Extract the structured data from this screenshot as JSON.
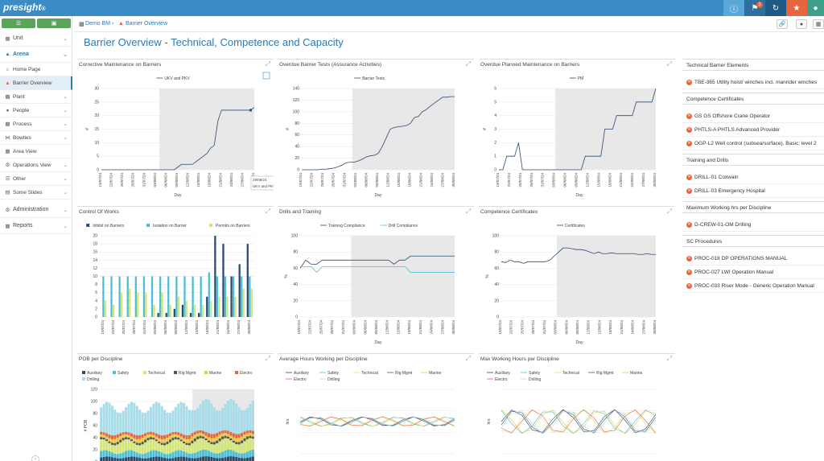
{
  "app": {
    "brand": "presight",
    "brand_suffix": "®",
    "colors": {
      "topbar": "#3a8cc4",
      "green": "#5aa55a",
      "orange": "#e8643c",
      "accent": "#2a7ab0"
    }
  },
  "topbar": {
    "badge_count": "3",
    "icons": [
      "info-icon",
      "bookmark-icon",
      "refresh-icon",
      "star-icon",
      "user-icon"
    ]
  },
  "sidebar": {
    "items": [
      {
        "label": "Unit",
        "icon": "unit-icon"
      },
      {
        "label": "Arena",
        "icon": "arena-icon"
      },
      {
        "label": "Home Page",
        "icon": "home-icon"
      },
      {
        "label": "Barrier Overview",
        "icon": "barrier-icon"
      },
      {
        "label": "Plant",
        "icon": "plant-icon"
      },
      {
        "label": "People",
        "icon": "people-icon"
      },
      {
        "label": "Process",
        "icon": "process-icon"
      },
      {
        "label": "Bowties",
        "icon": "bowtie-icon"
      },
      {
        "label": "Area View",
        "icon": "area-icon"
      },
      {
        "label": "Operations View",
        "icon": "operations-icon"
      },
      {
        "label": "Other",
        "icon": "other-icon"
      },
      {
        "label": "Some Slides",
        "icon": "slides-icon"
      },
      {
        "label": "Administration",
        "icon": "admin-icon"
      },
      {
        "label": "Reports",
        "icon": "reports-icon"
      }
    ]
  },
  "breadcrumb": {
    "root": "Demo BM",
    "separator": "›",
    "current": "Barrier Overview"
  },
  "page": {
    "title": "Barrier Overview - Technical, Competence and Capacity"
  },
  "dates": [
    "19/07/24",
    "22/07/24",
    "25/07/24",
    "28/07/24",
    "31/07/24",
    "03/08/24",
    "06/08/24",
    "09/08/24",
    "12/08/24",
    "15/08/24",
    "18/08/24",
    "21/08/24",
    "24/08/24",
    "27/08/24",
    "30/08/24"
  ],
  "shortdates": [
    "19/07/24",
    "22/07/24",
    "25/07/24",
    "28/07/24",
    "31/07/24",
    "03/08/24",
    "06/08/24",
    "09/08/24",
    "12/08/24",
    "15/08/24",
    "18/08/24",
    "21/08/24",
    "24/08/24",
    "27/08/24"
  ],
  "panels": {
    "cm": {
      "title": "Corrective Maintenance on Barriers",
      "legend": "UKV and PKV",
      "xlabel": "Day",
      "ylabel": "#",
      "yticks": [
        0,
        5,
        10,
        15,
        20,
        25,
        30
      ],
      "values": [
        0,
        0,
        0,
        0,
        0,
        0,
        0,
        0,
        0,
        0,
        0,
        0,
        0,
        0,
        0,
        0,
        0,
        0,
        0,
        0,
        0,
        1,
        2,
        2,
        2,
        2,
        3,
        4,
        5,
        6,
        8,
        9,
        18,
        22,
        22,
        22,
        22,
        22,
        22,
        22,
        22,
        22,
        23
      ],
      "tooltip_date": "29/08/24",
      "tooltip_text": "UKV and PKV: 22"
    },
    "obt": {
      "title": "Overdue Barrier Tests (Assurance Activities)",
      "legend": "Barrier Tests",
      "xlabel": "Day",
      "ylabel": "#",
      "yticks": [
        0,
        20,
        40,
        60,
        80,
        100,
        120,
        140
      ],
      "values": [
        0,
        0,
        0,
        0,
        0,
        1,
        1,
        2,
        3,
        5,
        8,
        12,
        13,
        13,
        15,
        18,
        22,
        24,
        25,
        28,
        40,
        55,
        70,
        73,
        74,
        75,
        76,
        80,
        90,
        92,
        100,
        104,
        110,
        115,
        120,
        125,
        125,
        126,
        126
      ]
    },
    "opm": {
      "title": "Overdue Planned Maintenance on Barriers",
      "legend": "PM",
      "xlabel": "Day",
      "ylabel": "#",
      "yticks": [
        0,
        1,
        2,
        3,
        4,
        5,
        6
      ],
      "values": [
        0,
        0,
        1,
        1,
        1,
        2,
        0,
        0,
        0,
        0,
        0,
        0,
        0,
        0,
        0,
        0,
        0,
        0,
        0,
        0,
        0,
        0,
        1,
        1,
        1,
        1,
        1,
        3,
        3,
        3,
        4,
        4,
        4,
        4,
        4,
        5,
        5,
        5,
        5,
        5,
        6
      ]
    },
    "cow": {
      "title": "Control Of Works",
      "legends": [
        "Inhibit on Barriers",
        "Isolation on Barrier",
        "Permits on Barriers"
      ],
      "colors": [
        "#2d4a6e",
        "#4dbfd4",
        "#d4e67a"
      ],
      "ylabel": "",
      "yticks": [
        0,
        2,
        4,
        6,
        8,
        10,
        12,
        14,
        16,
        18,
        20
      ],
      "series": [
        [
          0,
          0,
          0,
          0,
          0,
          0,
          0,
          1,
          1,
          2,
          3,
          1,
          1,
          5,
          20,
          18,
          10,
          13,
          18
        ],
        [
          10,
          10,
          10,
          10,
          10,
          10,
          10,
          10,
          10,
          10,
          10,
          10,
          10,
          11,
          10,
          10,
          10,
          10,
          10
        ],
        [
          4,
          3,
          6,
          7,
          6,
          6,
          3,
          6,
          3,
          5,
          4,
          3,
          3,
          4,
          5,
          5,
          5,
          7,
          7
        ]
      ]
    },
    "dt": {
      "title": "Drills and Training",
      "legends": [
        "Training Compliance",
        "Drill Compliance"
      ],
      "colors": [
        "#2d4a6e",
        "#4dbfd4"
      ],
      "xlabel": "Day",
      "ylabel": "%",
      "yticks": [
        0,
        20,
        40,
        60,
        80,
        100
      ],
      "series": [
        [
          60,
          70,
          65,
          65,
          70,
          70,
          70,
          70,
          70,
          70,
          70,
          70,
          70,
          70,
          70,
          70,
          70,
          65,
          70,
          70,
          75,
          75,
          75,
          75,
          75,
          75,
          75,
          75,
          75
        ],
        [
          62,
          62,
          62,
          55,
          62,
          62,
          62,
          62,
          62,
          62,
          62,
          62,
          62,
          62,
          62,
          62,
          62,
          62,
          62,
          62,
          55,
          55,
          55,
          55,
          55,
          55,
          55,
          55,
          55
        ]
      ]
    },
    "cc": {
      "title": "Competence Certificates",
      "legend": "Certificates",
      "xlabel": "Day",
      "ylabel": "%",
      "yticks": [
        0,
        20,
        40,
        60,
        80,
        100
      ],
      "values": [
        68,
        67,
        70,
        68,
        68,
        66,
        68,
        68,
        68,
        68,
        68,
        70,
        75,
        80,
        85,
        85,
        84,
        83,
        83,
        82,
        80,
        78,
        80,
        78,
        78,
        79,
        78,
        78,
        78,
        78,
        78,
        77,
        77,
        78,
        77,
        77
      ]
    },
    "pob": {
      "title": "POB per Discipline",
      "legends": [
        "Auxiliary",
        "Safety",
        "Technical",
        "Rig Mgmt",
        "Marine",
        "Electro",
        "Drilling"
      ],
      "colors": [
        "#2d4a6e",
        "#4dbfd4",
        "#d4e67a",
        "#555555",
        "#e8c840",
        "#e8643c",
        "#a8dce8"
      ],
      "ylabel": "# POB",
      "yticks": [
        0,
        20,
        40,
        60,
        80,
        100,
        120
      ]
    },
    "avg": {
      "title": "Average Hours Working per Discipline",
      "legends": [
        "Auxiliary",
        "Safety",
        "Technical",
        "Rig Mgmt",
        "Marine",
        "Electro",
        "Drilling"
      ],
      "ylabel": "hrs"
    },
    "max": {
      "title": "Max Working Hours per Discipline",
      "legends": [
        "Auxiliary",
        "Safety",
        "Technical",
        "Rig Mgmt",
        "Marine",
        "Electro",
        "Drilling"
      ],
      "ylabel": "hrs"
    }
  },
  "right": {
    "sections": [
      {
        "title": "Technical Barrier Elements",
        "items": [
          "TBE-365 Utility hoist/ winches incl. manrider winches"
        ]
      },
      {
        "title": "Competence Certificates",
        "items": [
          "GS GS Offshore Crane Operator",
          "PHTLS-A PHTLS Advanced Provider",
          "OGP-L2 Well control (subsea/surface), Basic; level 2"
        ]
      },
      {
        "title": "Training and Drills",
        "items": [
          "DRILL-01 Coxwain",
          "DRILL-03 Emergency Hospital"
        ]
      },
      {
        "title": "Maximum Working hrs per Discipline",
        "items": [
          "D-CREW-01-OM Drilling"
        ]
      },
      {
        "title": "SC Procedures",
        "items": [
          "PROC-018 DP OPERATIONS MANUAL",
          "PROC-027 LWI Operation Manual",
          "PROC-033 Riser Mode - Generic Operation Manual"
        ]
      }
    ]
  }
}
